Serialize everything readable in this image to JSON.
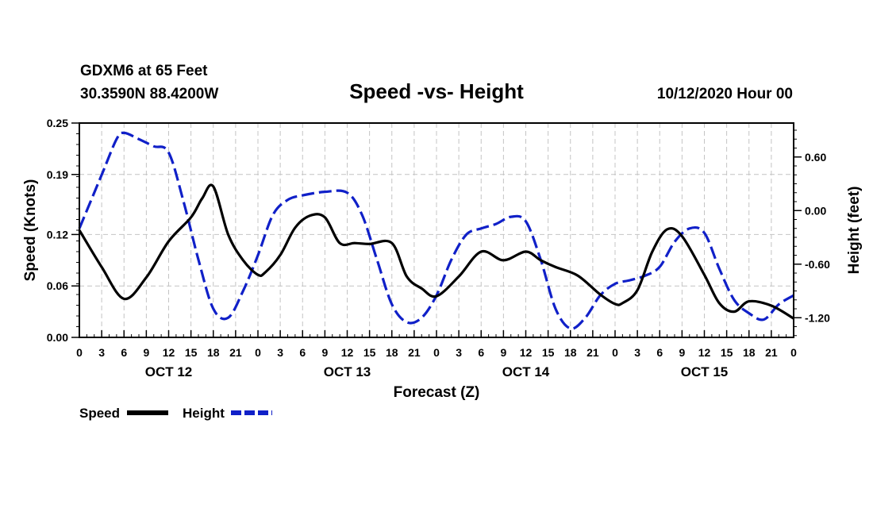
{
  "header": {
    "station_line": "GDXM6 at 65 Feet",
    "coords_line": "30.3590N 88.4200W",
    "title": "Speed -vs- Height",
    "run_line": "10/12/2020 Hour 00"
  },
  "chart_data": {
    "type": "line",
    "title": "Speed -vs- Height",
    "xlabel": "Forecast (Z)",
    "ylabel": "Speed (Knots)",
    "y2label": "Height (feet)",
    "grid": true,
    "xlim": [
      0,
      96
    ],
    "ylim": [
      0,
      0.25
    ],
    "y2lim": [
      -1.42,
      0.98
    ],
    "x_ticks": [
      0,
      3,
      6,
      9,
      12,
      15,
      18,
      21,
      24,
      27,
      30,
      33,
      36,
      39,
      42,
      45,
      48,
      51,
      54,
      57,
      60,
      63,
      66,
      69,
      72,
      75,
      78,
      81,
      84,
      87,
      90,
      93,
      96
    ],
    "x_tick_labels": [
      "0",
      "3",
      "6",
      "9",
      "12",
      "15",
      "18",
      "21",
      "0",
      "3",
      "6",
      "9",
      "12",
      "15",
      "18",
      "21",
      "0",
      "3",
      "6",
      "9",
      "12",
      "15",
      "18",
      "21",
      "0",
      "3",
      "6",
      "9",
      "12",
      "15",
      "18",
      "21",
      "0"
    ],
    "day_labels": [
      {
        "x": 12,
        "label": "OCT 12"
      },
      {
        "x": 36,
        "label": "OCT 13"
      },
      {
        "x": 60,
        "label": "OCT 14"
      },
      {
        "x": 84,
        "label": "OCT 15"
      }
    ],
    "y_ticks": [
      0.0,
      0.06,
      0.12,
      0.19,
      0.25
    ],
    "y_tick_labels": [
      "0.00",
      "0.06",
      "0.12",
      "0.19",
      "0.25"
    ],
    "y2_ticks": [
      0.6,
      0.0,
      -0.6,
      -1.2
    ],
    "y2_tick_labels": [
      "0.60",
      "0.00",
      "-0.60",
      "-1.20"
    ],
    "legend_location": "bottom-left",
    "series": [
      {
        "name": "Speed",
        "axis": "left",
        "color": "#000000",
        "style": "solid",
        "x": [
          0,
          3,
          6,
          9,
          12,
          15,
          16.5,
          18,
          20,
          22,
          24,
          25,
          27,
          29,
          31,
          33,
          35,
          37,
          39,
          42,
          44,
          46,
          48,
          51,
          54,
          57,
          60,
          62,
          64,
          67,
          70,
          72,
          73,
          75,
          77,
          79,
          81,
          84,
          86,
          88,
          90,
          93,
          96
        ],
        "y": [
          0.125,
          0.082,
          0.045,
          0.07,
          0.112,
          0.14,
          0.162,
          0.176,
          0.12,
          0.09,
          0.073,
          0.076,
          0.096,
          0.128,
          0.142,
          0.14,
          0.11,
          0.11,
          0.109,
          0.11,
          0.071,
          0.057,
          0.048,
          0.071,
          0.1,
          0.09,
          0.1,
          0.09,
          0.082,
          0.072,
          0.05,
          0.039,
          0.04,
          0.055,
          0.1,
          0.126,
          0.118,
          0.073,
          0.04,
          0.03,
          0.042,
          0.037,
          0.022
        ]
      },
      {
        "name": "Height",
        "axis": "right",
        "color": "#1020c8",
        "style": "dashed",
        "x": [
          0,
          3,
          5,
          6,
          8,
          10,
          12,
          14,
          16,
          18,
          20,
          22,
          24,
          26,
          28,
          30,
          33,
          36,
          38,
          40,
          42,
          44,
          46,
          48,
          50,
          52,
          54,
          56,
          58,
          60,
          62,
          64,
          66,
          68,
          70,
          72,
          74,
          76,
          78,
          80,
          82,
          84,
          86,
          88,
          90,
          92,
          94,
          96
        ],
        "y": [
          -0.2,
          0.4,
          0.8,
          0.87,
          0.8,
          0.72,
          0.65,
          0.1,
          -0.55,
          -1.1,
          -1.2,
          -0.9,
          -0.5,
          -0.05,
          0.12,
          0.17,
          0.21,
          0.2,
          -0.05,
          -0.55,
          -1.05,
          -1.25,
          -1.2,
          -0.95,
          -0.55,
          -0.27,
          -0.2,
          -0.15,
          -0.07,
          -0.12,
          -0.55,
          -1.1,
          -1.32,
          -1.2,
          -0.95,
          -0.82,
          -0.78,
          -0.73,
          -0.63,
          -0.35,
          -0.2,
          -0.25,
          -0.65,
          -1.0,
          -1.15,
          -1.22,
          -1.05,
          -0.95
        ]
      }
    ]
  }
}
